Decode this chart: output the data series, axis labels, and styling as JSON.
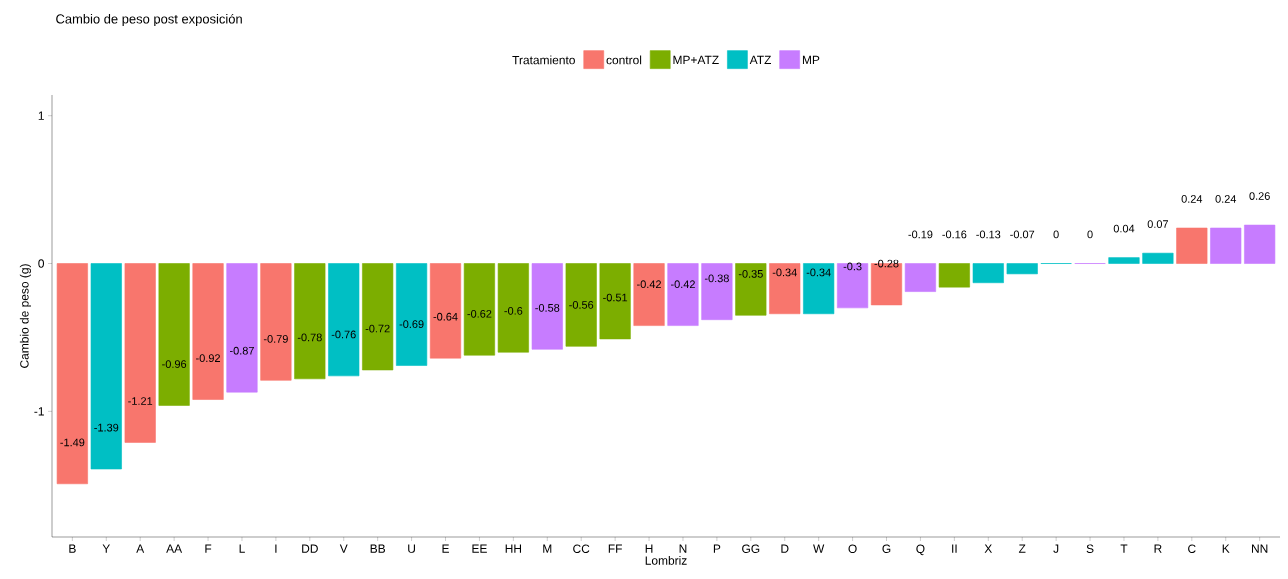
{
  "chart_data": {
    "type": "bar",
    "title": "Cambio de peso post exposición",
    "xlabel": "Lombriz",
    "ylabel": "Cambio de peso (g)",
    "legend_title": "Tratamiento",
    "legend": "top",
    "categories": [
      "B",
      "Y",
      "A",
      "AA",
      "F",
      "L",
      "I",
      "DD",
      "V",
      "BB",
      "U",
      "E",
      "EE",
      "HH",
      "M",
      "CC",
      "FF",
      "H",
      "N",
      "P",
      "GG",
      "D",
      "W",
      "O",
      "G",
      "Q",
      "II",
      "X",
      "Z",
      "J",
      "S",
      "T",
      "R",
      "C",
      "K",
      "NN"
    ],
    "series": [
      {
        "name": "control",
        "color": "#f8766d",
        "values": [
          -1.49,
          null,
          -1.21,
          null,
          -0.92,
          null,
          -0.79,
          null,
          null,
          null,
          null,
          -0.64,
          null,
          null,
          null,
          null,
          null,
          -0.42,
          null,
          null,
          null,
          -0.34,
          null,
          null,
          -0.28,
          null,
          null,
          null,
          null,
          null,
          null,
          null,
          null,
          0.24,
          null,
          null
        ],
        "value_labels": [
          "-1.49",
          null,
          "-1.21",
          null,
          "-0.92",
          null,
          "-0.79",
          null,
          null,
          null,
          null,
          "-0.64",
          null,
          null,
          null,
          null,
          null,
          "-0.42",
          null,
          null,
          null,
          "-0.34",
          null,
          null,
          "-0.28",
          null,
          null,
          null,
          null,
          null,
          null,
          null,
          null,
          "0.24",
          null,
          null
        ]
      },
      {
        "name": "MP+ATZ",
        "color": "#7cae00",
        "values": [
          null,
          null,
          null,
          -0.96,
          null,
          null,
          null,
          -0.78,
          null,
          -0.72,
          null,
          null,
          -0.62,
          -0.6,
          null,
          -0.56,
          -0.51,
          null,
          null,
          null,
          -0.35,
          null,
          null,
          null,
          null,
          null,
          -0.16,
          null,
          null,
          null,
          null,
          null,
          null,
          null,
          null,
          null
        ],
        "value_labels": [
          null,
          null,
          null,
          "-0.96",
          null,
          null,
          null,
          "-0.78",
          null,
          "-0.72",
          null,
          null,
          "-0.62",
          "-0.6",
          null,
          "-0.56",
          "-0.51",
          null,
          null,
          null,
          "-0.35",
          null,
          null,
          null,
          null,
          null,
          "-0.16",
          null,
          null,
          null,
          null,
          null,
          null,
          null,
          null,
          null
        ]
      },
      {
        "name": "ATZ",
        "color": "#00bfc4",
        "values": [
          null,
          -1.39,
          null,
          null,
          null,
          null,
          null,
          null,
          -0.76,
          null,
          -0.69,
          null,
          null,
          null,
          null,
          null,
          null,
          null,
          null,
          null,
          null,
          null,
          -0.34,
          null,
          null,
          null,
          null,
          -0.13,
          -0.07,
          0,
          null,
          0.04,
          0.07,
          null,
          null,
          null
        ],
        "value_labels": [
          null,
          "-1.39",
          null,
          null,
          null,
          null,
          null,
          null,
          "-0.76",
          null,
          "-0.69",
          null,
          null,
          null,
          null,
          null,
          null,
          null,
          null,
          null,
          null,
          null,
          "-0.34",
          null,
          null,
          null,
          null,
          "-0.13",
          "-0.07",
          "0",
          null,
          "0.04",
          "0.07",
          null,
          null,
          null
        ]
      },
      {
        "name": "MP",
        "color": "#c77cff",
        "values": [
          null,
          null,
          null,
          null,
          null,
          -0.87,
          null,
          null,
          null,
          null,
          null,
          null,
          null,
          null,
          -0.58,
          null,
          null,
          null,
          -0.42,
          -0.38,
          null,
          null,
          null,
          -0.3,
          null,
          -0.19,
          null,
          null,
          null,
          null,
          0,
          null,
          null,
          null,
          0.24,
          0.26
        ],
        "value_labels": [
          null,
          null,
          null,
          null,
          null,
          "-0.87",
          null,
          null,
          null,
          null,
          null,
          null,
          null,
          null,
          "-0.58",
          null,
          null,
          null,
          "-0.42",
          "-0.38",
          null,
          null,
          null,
          "-0.3",
          null,
          "-0.19",
          null,
          null,
          null,
          null,
          "0",
          null,
          null,
          null,
          "0.24",
          "0.26"
        ]
      }
    ],
    "ylim": [
      -1.85,
      1.14
    ],
    "yticks": [
      -1,
      0,
      1
    ],
    "grid": false
  }
}
